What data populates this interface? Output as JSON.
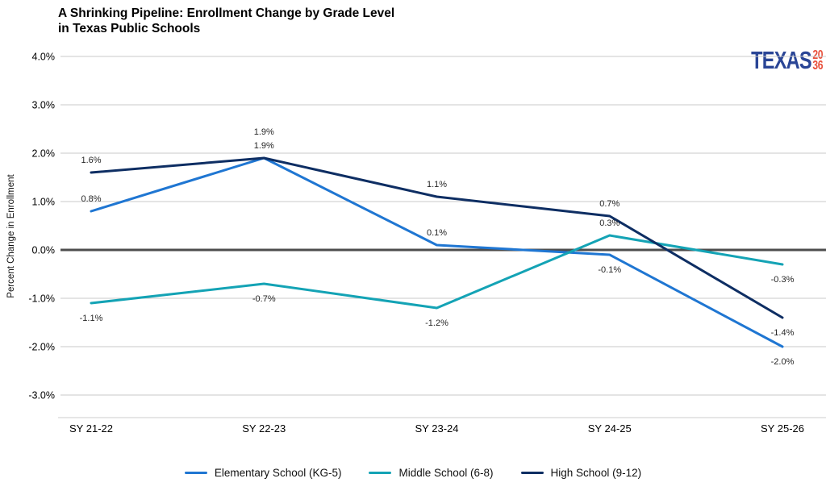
{
  "title": {
    "line1": "A Shrinking Pipeline: Enrollment Change by Grade Level",
    "line2": "in Texas Public Schools"
  },
  "logo": {
    "texas": "TEXAS",
    "year_top": "20",
    "year_bottom": "36",
    "navy": "#2a4596",
    "orange": "#e8513d"
  },
  "chart_data": {
    "type": "line",
    "title": "A Shrinking Pipeline: Enrollment Change by Grade Level in Texas Public Schools",
    "categories": [
      "SY 21-22",
      "SY 22-23",
      "SY 23-24",
      "SY 24-25",
      "SY 25-26"
    ],
    "series": [
      {
        "name": "Elementary School (KG-5)",
        "color": "#1f76d2",
        "values": [
          0.8,
          1.9,
          0.1,
          -0.1,
          -2.0
        ]
      },
      {
        "name": "Middle School (6-8)",
        "color": "#14a3b5",
        "values": [
          -1.1,
          -0.7,
          -1.2,
          0.3,
          -0.3
        ]
      },
      {
        "name": "High School (9-12)",
        "color": "#0e2e63",
        "values": [
          1.6,
          1.9,
          1.1,
          0.7,
          -1.4
        ]
      }
    ],
    "xlabel": "",
    "ylabel": "Percent Change in Enrollment",
    "yticks": [
      4.0,
      3.0,
      2.0,
      1.0,
      0.0,
      -1.0,
      -2.0,
      -3.0
    ],
    "ytick_labels": [
      "4.0%",
      "3.0%",
      "2.0%",
      "1.0%",
      "0.0%",
      "-1.0%",
      "-2.0%",
      "-3.0%"
    ],
    "ylim": [
      -3.5,
      4.2
    ],
    "grid": true,
    "zero_line": true,
    "data_labels": true,
    "legend_position": "bottom",
    "colors": {
      "gridline": "#c9c9c9",
      "zero_line": "#4d4d4d",
      "axis_line": "#cccccc",
      "label_text": "#262626"
    }
  }
}
